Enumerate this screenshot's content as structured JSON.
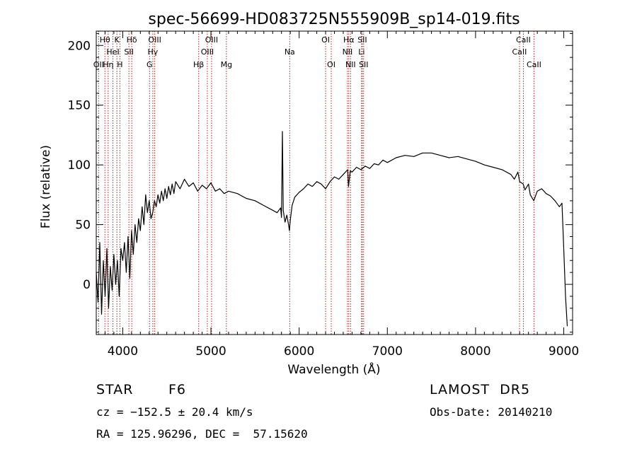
{
  "chart_data": {
    "type": "line",
    "title": "spec-56699-HD083725N555909B_sp14-019.fits",
    "xlabel": "Wavelength (Å)",
    "ylabel": "Flux (relative)",
    "xlim": [
      3700,
      9100
    ],
    "ylim": [
      -42,
      212
    ],
    "xticks": [
      "4000",
      "5000",
      "6000",
      "7000",
      "8000",
      "9000"
    ],
    "yticks": [
      "0",
      "50",
      "100",
      "150",
      "200"
    ],
    "grid": false,
    "series": [
      {
        "color": "#000000",
        "points": [
          [
            3700,
            10
          ],
          [
            3720,
            -15
          ],
          [
            3740,
            35
          ],
          [
            3760,
            -25
          ],
          [
            3780,
            20
          ],
          [
            3800,
            -10
          ],
          [
            3820,
            30
          ],
          [
            3840,
            -20
          ],
          [
            3860,
            15
          ],
          [
            3880,
            -5
          ],
          [
            3900,
            25
          ],
          [
            3920,
            0
          ],
          [
            3940,
            20
          ],
          [
            3960,
            -10
          ],
          [
            3980,
            30
          ],
          [
            4000,
            20
          ],
          [
            4020,
            35
          ],
          [
            4040,
            10
          ],
          [
            4060,
            40
          ],
          [
            4080,
            5
          ],
          [
            4100,
            45
          ],
          [
            4120,
            25
          ],
          [
            4140,
            50
          ],
          [
            4160,
            35
          ],
          [
            4180,
            55
          ],
          [
            4200,
            45
          ],
          [
            4220,
            65
          ],
          [
            4240,
            50
          ],
          [
            4260,
            75
          ],
          [
            4280,
            60
          ],
          [
            4300,
            70
          ],
          [
            4320,
            55
          ],
          [
            4340,
            60
          ],
          [
            4360,
            70
          ],
          [
            4380,
            65
          ],
          [
            4400,
            75
          ],
          [
            4420,
            68
          ],
          [
            4440,
            78
          ],
          [
            4460,
            70
          ],
          [
            4480,
            80
          ],
          [
            4500,
            72
          ],
          [
            4520,
            82
          ],
          [
            4540,
            75
          ],
          [
            4560,
            84
          ],
          [
            4580,
            76
          ],
          [
            4600,
            86
          ],
          [
            4650,
            80
          ],
          [
            4700,
            88
          ],
          [
            4750,
            82
          ],
          [
            4800,
            85
          ],
          [
            4850,
            78
          ],
          [
            4900,
            83
          ],
          [
            4950,
            80
          ],
          [
            5000,
            85
          ],
          [
            5050,
            78
          ],
          [
            5100,
            80
          ],
          [
            5150,
            76
          ],
          [
            5200,
            78
          ],
          [
            5300,
            76
          ],
          [
            5400,
            72
          ],
          [
            5500,
            70
          ],
          [
            5600,
            66
          ],
          [
            5700,
            62
          ],
          [
            5750,
            60
          ],
          [
            5790,
            64
          ],
          [
            5800,
            56
          ],
          [
            5810,
            128
          ],
          [
            5820,
            62
          ],
          [
            5840,
            52
          ],
          [
            5860,
            58
          ],
          [
            5880,
            50
          ],
          [
            5890,
            45
          ],
          [
            5900,
            54
          ],
          [
            5920,
            66
          ],
          [
            5950,
            73
          ],
          [
            6000,
            77
          ],
          [
            6050,
            80
          ],
          [
            6100,
            84
          ],
          [
            6150,
            82
          ],
          [
            6200,
            86
          ],
          [
            6250,
            84
          ],
          [
            6300,
            80
          ],
          [
            6350,
            86
          ],
          [
            6400,
            90
          ],
          [
            6450,
            88
          ],
          [
            6500,
            92
          ],
          [
            6550,
            96
          ],
          [
            6560,
            82
          ],
          [
            6580,
            95
          ],
          [
            6600,
            94
          ],
          [
            6650,
            98
          ],
          [
            6700,
            96
          ],
          [
            6750,
            99
          ],
          [
            6800,
            97
          ],
          [
            6850,
            101
          ],
          [
            6900,
            100
          ],
          [
            6950,
            104
          ],
          [
            7000,
            102
          ],
          [
            7100,
            106
          ],
          [
            7200,
            108
          ],
          [
            7300,
            107
          ],
          [
            7400,
            110
          ],
          [
            7500,
            110
          ],
          [
            7600,
            108
          ],
          [
            7700,
            106
          ],
          [
            7800,
            107
          ],
          [
            7900,
            105
          ],
          [
            8000,
            103
          ],
          [
            8100,
            100
          ],
          [
            8200,
            98
          ],
          [
            8300,
            96
          ],
          [
            8400,
            92
          ],
          [
            8440,
            88
          ],
          [
            8480,
            94
          ],
          [
            8500,
            86
          ],
          [
            8540,
            84
          ],
          [
            8560,
            79
          ],
          [
            8600,
            84
          ],
          [
            8620,
            75
          ],
          [
            8660,
            70
          ],
          [
            8700,
            78
          ],
          [
            8750,
            80
          ],
          [
            8800,
            76
          ],
          [
            8850,
            74
          ],
          [
            8900,
            70
          ],
          [
            8950,
            65
          ],
          [
            8980,
            68
          ],
          [
            9000,
            30
          ],
          [
            9020,
            -10
          ],
          [
            9040,
            -35
          ]
        ]
      }
    ],
    "lines": [
      {
        "x": 3727,
        "row": 3,
        "label": "OII"
      },
      {
        "x": 3798,
        "row": 1,
        "label": "Hθ"
      },
      {
        "x": 3835,
        "row": 3,
        "label": "Hη"
      },
      {
        "x": 3889,
        "row": 2,
        "label": "HeI"
      },
      {
        "x": 3934,
        "row": 1,
        "label": "K"
      },
      {
        "x": 3968,
        "row": 3,
        "label": "H"
      },
      {
        "x": 4070,
        "row": 2,
        "label": "SII"
      },
      {
        "x": 4102,
        "row": 1,
        "label": "Hδ"
      },
      {
        "x": 4304,
        "row": 3,
        "label": "G"
      },
      {
        "x": 4341,
        "row": 2,
        "label": "Hγ"
      },
      {
        "x": 4363,
        "row": 1,
        "label": "OIII"
      },
      {
        "x": 4861,
        "row": 3,
        "label": "Hβ"
      },
      {
        "x": 4959,
        "row": 2,
        "label": "OIII"
      },
      {
        "x": 5007,
        "row": 1,
        "label": "OIII"
      },
      {
        "x": 5175,
        "row": 3,
        "label": "Mg"
      },
      {
        "x": 5893,
        "row": 2,
        "label": "Na"
      },
      {
        "x": 6300,
        "row": 1,
        "label": "OI"
      },
      {
        "x": 6364,
        "row": 3,
        "label": "OI"
      },
      {
        "x": 6548,
        "row": 2,
        "label": "NII"
      },
      {
        "x": 6563,
        "row": 1,
        "label": "Hα"
      },
      {
        "x": 6583,
        "row": 3,
        "label": "NII"
      },
      {
        "x": 6708,
        "row": 2,
        "label": "Li"
      },
      {
        "x": 6716,
        "row": 1,
        "label": "SII"
      },
      {
        "x": 6731,
        "row": 3,
        "label": "SII"
      },
      {
        "x": 8498,
        "row": 2,
        "label": "CaII"
      },
      {
        "x": 8542,
        "row": 1,
        "label": "CaII"
      },
      {
        "x": 8662,
        "row": 3,
        "label": "CaII"
      }
    ],
    "line_color": "#b22222"
  },
  "footer": {
    "object_type": "STAR",
    "subclass": "F6",
    "survey": "LAMOST  DR5",
    "cz": "cz = −152.5 ± 20.4 km/s",
    "obs_date": "Obs-Date: 20140210",
    "coords": "RA = 125.96296, DEC =  57.15620"
  }
}
